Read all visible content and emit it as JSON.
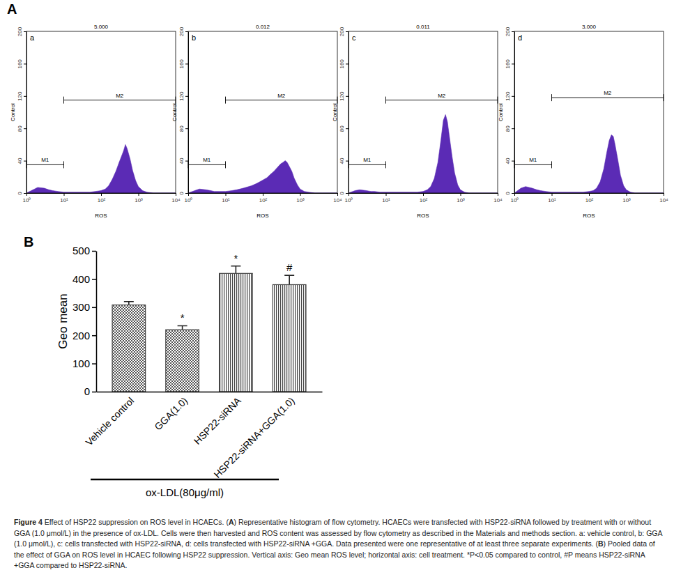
{
  "chart_data": [
    {
      "type": "area",
      "title": "a",
      "subtitle": "5.000",
      "x_label": "ROS",
      "y_label": "Control",
      "log": "x",
      "color": "#5b2bb5",
      "x": [
        1,
        1.5,
        2,
        3,
        4,
        5,
        7,
        10,
        15,
        20,
        30,
        50,
        70,
        100,
        130,
        160,
        200,
        250,
        300,
        350,
        400,
        450,
        500,
        600,
        700,
        850,
        1000,
        1300,
        1700,
        2500,
        4000,
        10000
      ],
      "values": [
        0,
        4,
        7,
        6,
        4,
        3,
        2,
        1,
        1,
        1,
        1,
        1,
        2,
        3,
        5,
        9,
        17,
        27,
        37,
        45,
        52,
        60,
        55,
        42,
        28,
        15,
        8,
        3,
        1,
        0,
        0,
        0
      ],
      "xlim": [
        1,
        10000
      ],
      "ylim": [
        0,
        200
      ],
      "xticks": [
        {
          "value": 1,
          "label": "10⁰"
        },
        {
          "value": 10,
          "label": "10¹"
        },
        {
          "value": 100,
          "label": "10²"
        },
        {
          "value": 1000,
          "label": "10³"
        },
        {
          "value": 10000,
          "label": "10⁴"
        }
      ],
      "yticks": [
        0,
        40,
        80,
        120,
        160,
        200
      ],
      "gates": [
        {
          "label": "M1",
          "range": [
            1,
            10
          ],
          "y": 35
        },
        {
          "label": "M2",
          "range": [
            10,
            10000
          ],
          "y": 115
        }
      ]
    },
    {
      "type": "area",
      "title": "b",
      "subtitle": "0.012",
      "x_label": "ROS",
      "y_label": "Control",
      "log": "x",
      "color": "#5b2bb5",
      "x": [
        1,
        1.5,
        2,
        3,
        4,
        5,
        7,
        10,
        15,
        20,
        30,
        50,
        70,
        100,
        130,
        160,
        200,
        250,
        300,
        350,
        400,
        450,
        500,
        600,
        700,
        850,
        1000,
        1300,
        1700,
        2500,
        4000,
        10000
      ],
      "values": [
        0,
        3,
        5,
        4,
        3,
        2,
        2,
        2,
        3,
        4,
        6,
        9,
        12,
        16,
        19,
        23,
        27,
        32,
        36,
        38,
        40,
        38,
        34,
        27,
        18,
        10,
        5,
        2,
        1,
        0,
        0,
        0
      ],
      "xlim": [
        1,
        10000
      ],
      "ylim": [
        0,
        200
      ],
      "xticks": [
        {
          "value": 1,
          "label": "10⁰"
        },
        {
          "value": 10,
          "label": "10¹"
        },
        {
          "value": 100,
          "label": "10²"
        },
        {
          "value": 1000,
          "label": "10³"
        },
        {
          "value": 10000,
          "label": "10⁴"
        }
      ],
      "yticks": [
        0,
        40,
        80,
        120,
        160,
        200
      ],
      "gates": [
        {
          "label": "M1",
          "range": [
            1,
            10
          ],
          "y": 35
        },
        {
          "label": "M2",
          "range": [
            10,
            10000
          ],
          "y": 115
        }
      ]
    },
    {
      "type": "area",
      "title": "c",
      "subtitle": "0.011",
      "x_label": "ROS",
      "y_label": "Control",
      "log": "x",
      "color": "#5b2bb5",
      "x": [
        1,
        1.5,
        2,
        3,
        4,
        5,
        7,
        10,
        15,
        20,
        30,
        50,
        70,
        100,
        130,
        160,
        200,
        250,
        300,
        350,
        400,
        450,
        500,
        600,
        700,
        850,
        1000,
        1300,
        1700,
        2500,
        4000,
        10000
      ],
      "values": [
        0,
        3,
        4,
        3,
        2,
        2,
        1,
        1,
        1,
        1,
        1,
        1,
        1,
        2,
        4,
        8,
        18,
        38,
        65,
        90,
        97,
        88,
        72,
        45,
        25,
        10,
        4,
        1,
        0,
        0,
        0,
        0
      ],
      "xlim": [
        1,
        10000
      ],
      "ylim": [
        0,
        200
      ],
      "xticks": [
        {
          "value": 1,
          "label": "10⁰"
        },
        {
          "value": 10,
          "label": "10¹"
        },
        {
          "value": 100,
          "label": "10²"
        },
        {
          "value": 1000,
          "label": "10³"
        },
        {
          "value": 10000,
          "label": "10⁴"
        }
      ],
      "yticks": [
        0,
        40,
        80,
        120,
        160,
        200
      ],
      "gates": [
        {
          "label": "M1",
          "range": [
            1,
            10
          ],
          "y": 35
        },
        {
          "label": "M2",
          "range": [
            10,
            10000
          ],
          "y": 115
        }
      ]
    },
    {
      "type": "area",
      "title": "d",
      "subtitle": "3.000",
      "x_label": "ROS",
      "y_label": "Control",
      "log": "x",
      "color": "#5b2bb5",
      "x": [
        1,
        1.5,
        2,
        3,
        4,
        5,
        7,
        10,
        15,
        20,
        30,
        50,
        70,
        100,
        130,
        160,
        200,
        250,
        300,
        350,
        400,
        450,
        500,
        600,
        700,
        850,
        1000,
        1300,
        1700,
        2500,
        4000,
        10000
      ],
      "values": [
        0,
        6,
        8,
        6,
        4,
        3,
        2,
        1,
        1,
        1,
        1,
        1,
        1,
        2,
        3,
        6,
        14,
        30,
        50,
        65,
        72,
        70,
        60,
        40,
        22,
        9,
        4,
        1,
        0,
        0,
        0,
        0
      ],
      "xlim": [
        1,
        10000
      ],
      "ylim": [
        0,
        200
      ],
      "xticks": [
        {
          "value": 1,
          "label": "10⁰"
        },
        {
          "value": 10,
          "label": "10¹"
        },
        {
          "value": 100,
          "label": "10²"
        },
        {
          "value": 1000,
          "label": "10³"
        },
        {
          "value": 10000,
          "label": "10⁴"
        }
      ],
      "yticks": [
        0,
        40,
        80,
        120,
        160,
        200
      ],
      "gates": [
        {
          "label": "M1",
          "range": [
            1,
            10
          ],
          "y": 35
        },
        {
          "label": "M2",
          "range": [
            10,
            10000
          ],
          "y": 118
        }
      ]
    },
    {
      "type": "bar",
      "x_label": "ox-LDL(80μg/ml)",
      "y_label": "Geo mean",
      "color": "#444444",
      "categories": [
        "Vehicle control",
        "GGA(1.0)",
        "HSP22-siRNA",
        "HSP22-siRNA+GGA(1.0)"
      ],
      "values": [
        308,
        220,
        420,
        380
      ],
      "errors": [
        12,
        14,
        26,
        33
      ],
      "significance": [
        null,
        "*",
        "*",
        "#"
      ],
      "ylim": [
        0,
        500
      ],
      "yticks": [
        0,
        100,
        200,
        300,
        400,
        500
      ]
    }
  ],
  "figure": {
    "panel_labels": [
      "A",
      "B"
    ],
    "caption": [
      {
        "text": "Figure 4",
        "bold": true
      },
      {
        "text": " Effect of HSP22 suppression on ROS level in HCAECs. (",
        "bold": false
      },
      {
        "text": "A",
        "bold": true
      },
      {
        "text": ") Representative histogram of flow cytometry. HCAECs were transfected with HSP22-siRNA followed by treatment with or without GGA (1.0 μmol/L) in the presence of ox-LDL. Cells were then harvested and ROS content was assessed by flow cytometry as described in the Materials and methods section. a: vehicle control, b: GGA (1.0 μmol/L), c: cells transfected with HSP22-siRNA, d: cells transfected with HSP22-siRNA +GGA. Data presented were one representative of at least three separate experiments. (",
        "bold": false
      },
      {
        "text": "B",
        "bold": true
      },
      {
        "text": ") Pooled data of the effect of GGA on ROS level in HCAEC following HSP22 suppression. Vertical axis: Geo mean ROS level; horizontal axis: cell treatment. *P<0.05 compared to control, #P means HSP22-siRNA +GGA compared to HSP22-siRNA.",
        "bold": false
      }
    ]
  }
}
